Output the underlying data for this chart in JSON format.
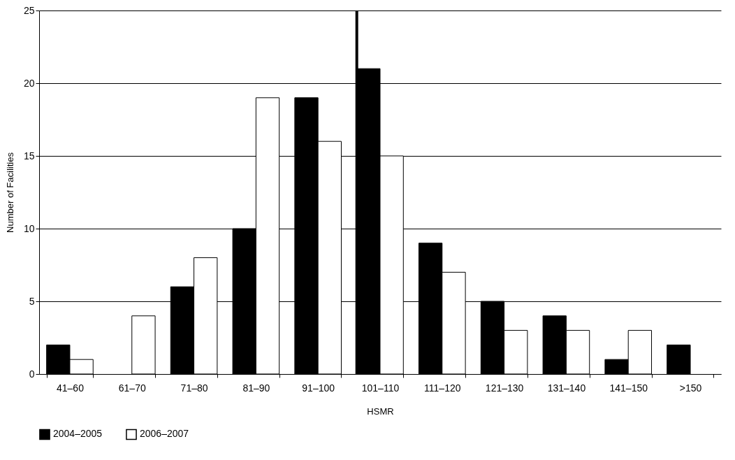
{
  "chart_data": {
    "type": "bar",
    "xlabel": "HSMR",
    "ylabel": "Number of Facilities",
    "categories": [
      "41–60",
      "61–70",
      "71–80",
      "81–90",
      "91–100",
      "101–110",
      "111–120",
      "121–130",
      "131–140",
      "141–150",
      ">150"
    ],
    "series": [
      {
        "name": "2004–2005",
        "color": "#000000",
        "values": [
          2,
          0,
          6,
          10,
          19,
          21,
          9,
          5,
          4,
          1,
          2
        ]
      },
      {
        "name": "2006–2007",
        "color": "#ffffff",
        "values": [
          1,
          4,
          8,
          19,
          16,
          15,
          7,
          3,
          3,
          3,
          0
        ]
      }
    ],
    "ylim": [
      0,
      25
    ],
    "yticks": [
      0,
      5,
      10,
      15,
      20,
      25
    ],
    "grid": "y",
    "legend": "bottom",
    "ref_lines": [
      {
        "axis": "x",
        "value": "101–110",
        "color": "#000000"
      }
    ]
  }
}
